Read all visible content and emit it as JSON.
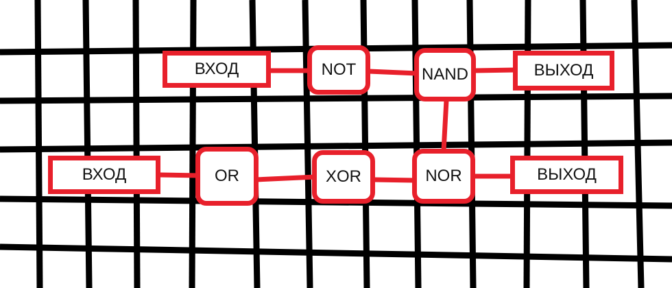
{
  "colors": {
    "grid": "#000000",
    "accent": "#e8202b",
    "background": "#ffffff"
  },
  "diagram": {
    "row_top": {
      "input_label": "ВХОД",
      "gate_not": "NOT",
      "gate_nand": "NAND",
      "output_label": "ВЫХОД"
    },
    "row_bottom": {
      "input_label": "ВХОД",
      "gate_or": "OR",
      "gate_xor": "XOR",
      "gate_nor": "NOR",
      "output_label": "ВЫХОД"
    }
  }
}
